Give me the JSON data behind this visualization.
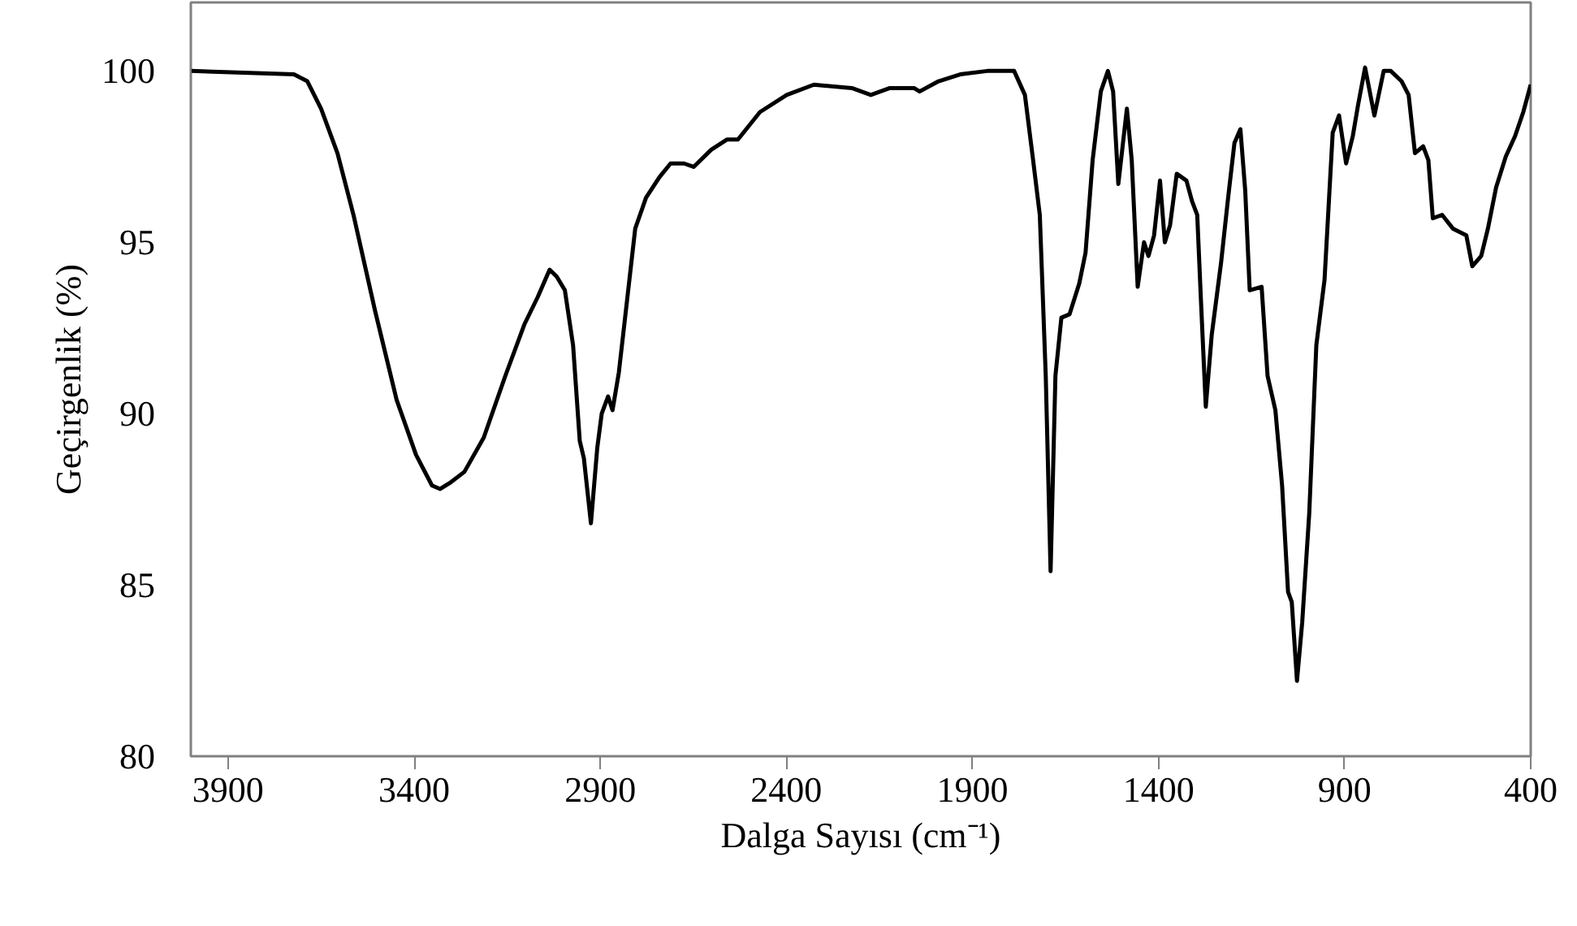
{
  "chart_data": {
    "type": "line",
    "xlabel": "Dalga Sayısı (cm⁻¹)",
    "ylabel": "Geçirgenlik (%)",
    "xlim": [
      4000,
      400
    ],
    "xticks": [
      3900,
      3400,
      2900,
      2400,
      1900,
      1400,
      900,
      400
    ],
    "ylim": [
      80,
      102
    ],
    "yticks": [
      80,
      85,
      90,
      95,
      100
    ],
    "grid": false,
    "marker": "none",
    "line_style": "solid",
    "series": [
      {
        "color": "#000000",
        "x": [
          4000,
          3723,
          3687,
          3650,
          3606,
          3563,
          3505,
          3447,
          3395,
          3352,
          3330,
          3301,
          3265,
          3213,
          3155,
          3104,
          3068,
          3036,
          3017,
          2995,
          2973,
          2955,
          2944,
          2925,
          2908,
          2896,
          2879,
          2867,
          2850,
          2828,
          2806,
          2777,
          2741,
          2711,
          2675,
          2649,
          2602,
          2559,
          2530,
          2471,
          2399,
          2326,
          2224,
          2173,
          2122,
          2057,
          2042,
          1991,
          1933,
          1860,
          1788,
          1759,
          1737,
          1719,
          1703,
          1690,
          1677,
          1661,
          1639,
          1613,
          1596,
          1577,
          1555,
          1536,
          1522,
          1508,
          1485,
          1472,
          1456,
          1439,
          1427,
          1412,
          1396,
          1383,
          1369,
          1351,
          1325,
          1310,
          1296,
          1286,
          1273,
          1257,
          1232,
          1213,
          1196,
          1180,
          1167,
          1155,
          1123,
          1107,
          1086,
          1068,
          1052,
          1042,
          1028,
          1014,
          995,
          976,
          954,
          932,
          915,
          896,
          878,
          864,
          845,
          820,
          795,
          776,
          747,
          728,
          711,
          689,
          675,
          663,
          638,
          609,
          573,
          557,
          533,
          515,
          493,
          467,
          442,
          420,
          400
        ],
        "values": [
          100.0,
          99.9,
          99.7,
          98.9,
          97.6,
          95.8,
          93.0,
          90.4,
          88.8,
          87.9,
          87.8,
          88.0,
          88.3,
          89.3,
          91.1,
          92.6,
          93.4,
          94.2,
          94.0,
          93.6,
          92.0,
          89.2,
          88.7,
          86.8,
          89.0,
          90.0,
          90.5,
          90.1,
          91.2,
          93.3,
          95.4,
          96.3,
          96.9,
          97.3,
          97.3,
          97.2,
          97.7,
          98.0,
          98.0,
          98.8,
          99.3,
          99.6,
          99.5,
          99.3,
          99.5,
          99.5,
          99.4,
          99.7,
          99.9,
          100.0,
          100.0,
          99.3,
          97.4,
          95.8,
          91.1,
          85.4,
          91.1,
          92.8,
          92.9,
          93.8,
          94.7,
          97.4,
          99.4,
          100.0,
          99.4,
          96.7,
          98.9,
          97.4,
          93.7,
          95.0,
          94.6,
          95.2,
          96.8,
          95.0,
          95.5,
          97.0,
          96.8,
          96.2,
          95.8,
          93.3,
          90.2,
          92.3,
          94.4,
          96.3,
          97.9,
          98.3,
          96.5,
          93.6,
          93.7,
          91.1,
          90.1,
          87.9,
          84.8,
          84.5,
          82.2,
          83.9,
          87.1,
          92.0,
          93.9,
          98.2,
          98.7,
          97.3,
          98.1,
          99.0,
          100.1,
          98.7,
          100.0,
          100.0,
          99.7,
          99.3,
          97.6,
          97.8,
          97.4,
          95.7,
          95.8,
          95.4,
          95.2,
          94.3,
          94.6,
          95.4,
          96.6,
          97.5,
          98.1,
          98.8,
          99.6
        ]
      }
    ]
  }
}
